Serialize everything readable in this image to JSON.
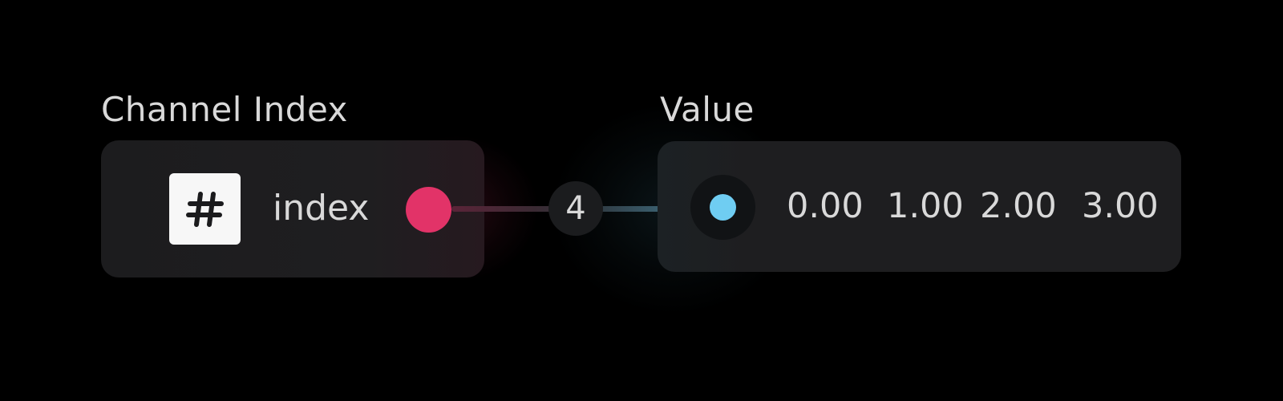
{
  "nodes": {
    "source": {
      "title": "Channel Index",
      "port_label": "index",
      "type_icon": "hash-icon",
      "port_color": "#e23368"
    },
    "target": {
      "title": "Value",
      "port_color": "#6fcdf2",
      "values": [
        "0.00",
        "1.00",
        "2.00",
        "3.00"
      ]
    }
  },
  "connection": {
    "count": "4"
  }
}
